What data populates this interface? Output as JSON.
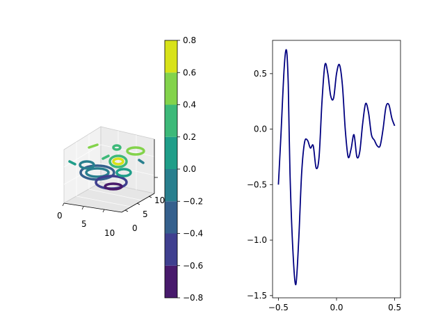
{
  "chart_data": [
    {
      "type": "contour3d",
      "x_ticks": [
        "0",
        "5",
        "10"
      ],
      "y_ticks": [
        "0",
        "5",
        "10"
      ],
      "z_tick_visible": "5",
      "colorbar": {
        "ticks": [
          "-0.8",
          "-0.6",
          "-0.4",
          "-0.2",
          "0.0",
          "0.2",
          "0.4",
          "0.6",
          "0.8"
        ],
        "levels": [
          -0.8,
          -0.6,
          -0.4,
          -0.2,
          0.0,
          0.2,
          0.4,
          0.6,
          0.8
        ],
        "colors": [
          "#481a6c",
          "#3f3f8f",
          "#35608d",
          "#287f8e",
          "#1f9e89",
          "#3db979",
          "#83d34b",
          "#d8e219"
        ]
      },
      "grid": true
    },
    {
      "type": "line",
      "x": [
        -0.5,
        -0.48,
        -0.45,
        -0.43,
        -0.415,
        -0.4,
        -0.375,
        -0.35,
        -0.325,
        -0.3,
        -0.275,
        -0.25,
        -0.225,
        -0.2,
        -0.175,
        -0.15,
        -0.125,
        -0.1,
        -0.075,
        -0.05,
        -0.025,
        0.0,
        0.025,
        0.05,
        0.075,
        0.1,
        0.125,
        0.15,
        0.175,
        0.2,
        0.225,
        0.25,
        0.275,
        0.3,
        0.325,
        0.35,
        0.375,
        0.4,
        0.425,
        0.45,
        0.475,
        0.5
      ],
      "values": [
        -0.5,
        -0.1,
        0.55,
        0.71,
        0.4,
        -0.4,
        -1.1,
        -1.4,
        -1.0,
        -0.4,
        -0.12,
        -0.1,
        -0.17,
        -0.15,
        -0.35,
        -0.25,
        0.25,
        0.58,
        0.5,
        0.3,
        0.28,
        0.5,
        0.58,
        0.4,
        0.0,
        -0.25,
        -0.18,
        -0.05,
        -0.25,
        -0.2,
        0.05,
        0.23,
        0.15,
        -0.05,
        -0.1,
        -0.15,
        -0.15,
        0.0,
        0.2,
        0.22,
        0.1,
        0.03
      ],
      "xlim": [
        -0.55,
        0.55
      ],
      "ylim": [
        -1.52,
        0.8
      ],
      "x_ticks": [
        -0.5,
        0.0,
        0.5
      ],
      "y_ticks": [
        -1.5,
        -1.0,
        -0.5,
        0.0,
        0.5
      ],
      "x_tick_labels": [
        "−0.5",
        "0.0",
        "0.5"
      ],
      "y_tick_labels": [
        "−1.5",
        "−1.0",
        "−0.5",
        "0.0",
        "0.5"
      ],
      "color": "#000080"
    }
  ]
}
